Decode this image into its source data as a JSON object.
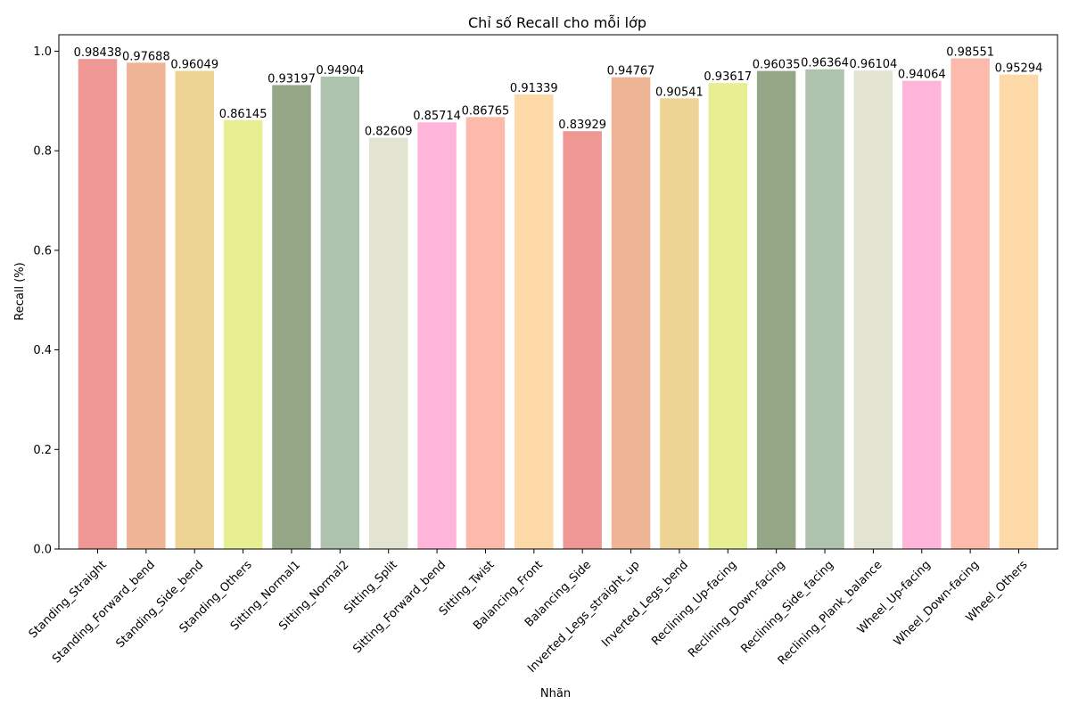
{
  "chart_data": {
    "type": "bar",
    "title": "Chỉ số Recall cho mỗi lớp",
    "xlabel": "Nhãn",
    "ylabel": "Recall (%)",
    "ylim": [
      0,
      1.033
    ],
    "yticks": [
      "0.0",
      "0.2",
      "0.4",
      "0.6",
      "0.8",
      "1.0"
    ],
    "ytick_values": [
      0,
      0.2,
      0.4,
      0.6,
      0.8,
      1.0
    ],
    "grid": false,
    "categories": [
      "Standing_Straight",
      "Standing_Forward_bend",
      "Standing_Side_bend",
      "Standing_Others",
      "Sitting_Normal1",
      "Sitting_Normal2",
      "Sitting_Split",
      "Sitting_Forward_bend",
      "Sitting_Twist",
      "Balancing_Front",
      "Balancing_Side",
      "Inverted_Legs_straight_up",
      "Inverted_Legs_bend",
      "Reclining_Up-facing",
      "Reclining_Down-facing",
      "Reclining_Side_facing",
      "Reclining_Plank_balance",
      "Wheel_Up-facing",
      "Wheel_Down-facing",
      "Wheel_Others"
    ],
    "values": [
      0.98438,
      0.97688,
      0.96049,
      0.86145,
      0.93197,
      0.94904,
      0.82609,
      0.85714,
      0.86765,
      0.91339,
      0.83929,
      0.94767,
      0.90541,
      0.93617,
      0.96035,
      0.96364,
      0.96104,
      0.94064,
      0.98551,
      0.95294
    ],
    "value_labels": [
      "0.98438",
      "0.97688",
      "0.96049",
      "0.86145",
      "0.93197",
      "0.94904",
      "0.82609",
      "0.85714",
      "0.86765",
      "0.91339",
      "0.83929",
      "0.94767",
      "0.90541",
      "0.93617",
      "0.96035",
      "0.96364",
      "0.96104",
      "0.94064",
      "0.98551",
      "0.95294"
    ],
    "colors": [
      "#ef9795",
      "#efb496",
      "#edd495",
      "#e8ee92",
      "#96a787",
      "#aec3ad",
      "#e3e3d1",
      "#ffb5d9",
      "#fbbaab",
      "#fed9a8",
      "#ef9795",
      "#efb496",
      "#edd495",
      "#e8ee92",
      "#96a787",
      "#aec3ad",
      "#e3e3d1",
      "#ffb5d9",
      "#fbbaab",
      "#fed9a8"
    ]
  }
}
